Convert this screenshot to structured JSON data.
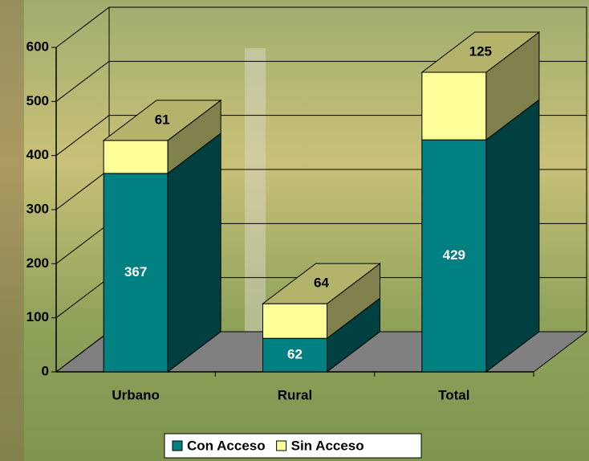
{
  "chart_data": {
    "type": "bar3d_stacked",
    "categories": [
      "Urbano",
      "Rural",
      "Total"
    ],
    "series": [
      {
        "name": "Con Acceso",
        "color": "#008080",
        "values": [
          367,
          62,
          429
        ]
      },
      {
        "name": "Sin Acceso",
        "color": "#ffff99",
        "values": [
          61,
          64,
          125
        ]
      }
    ],
    "ylim": [
      0,
      600
    ],
    "yticks": [
      0,
      100,
      200,
      300,
      400,
      500,
      600
    ],
    "grid": true,
    "legend": "bottom"
  }
}
